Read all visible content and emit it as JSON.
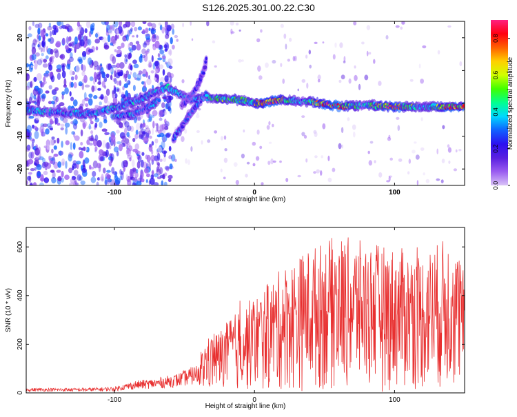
{
  "title": "S126.2025.301.00.22.C30",
  "chart_data": [
    {
      "type": "heatmap",
      "title": "S126.2025.301.00.22.C30",
      "xlabel": "Height of straight line (km)",
      "ylabel": "Frequency (Hz)",
      "xlim": [
        -163,
        150
      ],
      "ylim": [
        -25,
        25
      ],
      "xticks": [
        -100,
        0,
        100
      ],
      "yticks": [
        -20,
        -10,
        0,
        10,
        20
      ],
      "colorbar": {
        "label": "Normalized spectral amplitude",
        "range": [
          0,
          0.9
        ],
        "ticks": [
          "0.0",
          "0.2",
          "0.4",
          "0.6",
          "0.8"
        ],
        "colors": [
          "#d9c3f7",
          "#9a5cf0",
          "#5a20e0",
          "#2c10f0",
          "#1060ff",
          "#00d8ff",
          "#00ff90",
          "#40ff00",
          "#d0ff00",
          "#ffd000",
          "#ff6000",
          "#ff0010",
          "#ff2080"
        ]
      },
      "ridge_main": [
        [
          -163,
          -2
        ],
        [
          -150,
          -2.5
        ],
        [
          -130,
          -3
        ],
        [
          -115,
          -3
        ],
        [
          -100,
          -1.5
        ],
        [
          -90,
          0
        ],
        [
          -80,
          1.5
        ],
        [
          -70,
          3.5
        ],
        [
          -62,
          5
        ],
        [
          -55,
          3
        ],
        [
          -45,
          1
        ],
        [
          -35,
          2
        ],
        [
          -25,
          1.5
        ],
        [
          -10,
          1
        ],
        [
          0,
          0
        ],
        [
          20,
          1
        ],
        [
          40,
          0.5
        ],
        [
          50,
          0
        ],
        [
          60,
          -1
        ],
        [
          80,
          -0.5
        ],
        [
          100,
          -1
        ],
        [
          130,
          -1
        ],
        [
          150,
          -1
        ]
      ],
      "ridge_lower": [
        [
          -100,
          -4
        ],
        [
          -85,
          -3
        ],
        [
          -75,
          -1
        ],
        [
          -68,
          1
        ]
      ],
      "branch_a": [
        [
          -58,
          -11
        ],
        [
          -52,
          -7
        ],
        [
          -46,
          -3
        ],
        [
          -40,
          0
        ],
        [
          -34,
          3
        ]
      ],
      "branch_b": [
        [
          -52,
          -1
        ],
        [
          -46,
          2
        ],
        [
          -40,
          6
        ],
        [
          -36,
          10
        ],
        [
          -34,
          14
        ]
      ]
    },
    {
      "type": "line",
      "xlabel": "Height of straight line (km)",
      "ylabel": "SNR (10 * v/v)",
      "xlim": [
        -163,
        150
      ],
      "ylim": [
        0,
        680
      ],
      "xticks": [
        -100,
        0,
        100
      ],
      "yticks": [
        0,
        200,
        400,
        600
      ],
      "series": [
        {
          "name": "SNR",
          "color": "#e83030",
          "envelope_x": [
            -163,
            -120,
            -100,
            -85,
            -70,
            -55,
            -40,
            -35,
            -25,
            -10,
            0,
            10,
            20,
            30,
            40,
            60,
            80,
            100,
            120,
            140,
            150
          ],
          "envelope_y": [
            20,
            20,
            25,
            50,
            60,
            80,
            120,
            220,
            260,
            350,
            400,
            450,
            520,
            560,
            600,
            650,
            620,
            600,
            580,
            650,
            500
          ]
        }
      ]
    }
  ]
}
